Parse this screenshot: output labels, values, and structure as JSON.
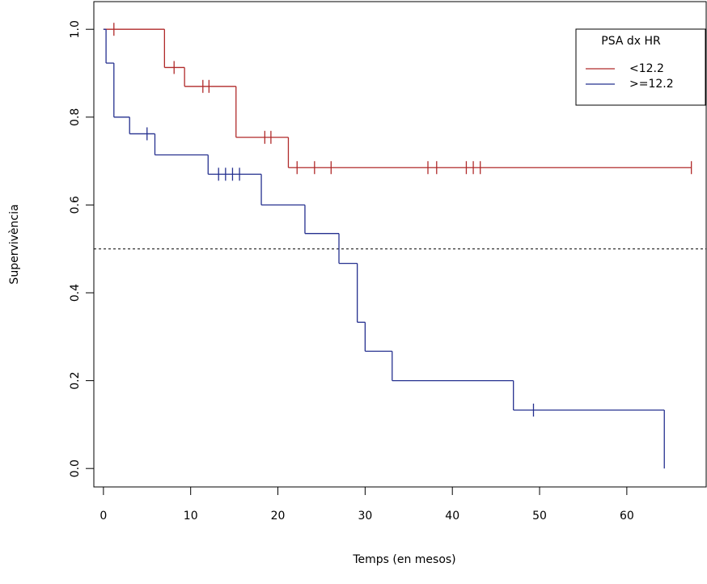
{
  "chart_data": {
    "type": "km",
    "xlabel": "Temps (en mesos)",
    "ylabel": "Supervivència",
    "xlim": [
      -1.1,
      69.1
    ],
    "ylim": [
      -0.042,
      1.063
    ],
    "xticks": [
      0,
      10,
      20,
      30,
      40,
      50,
      60
    ],
    "yticks": [
      {
        "value": 0,
        "label": "0.0"
      },
      {
        "value": 0.2,
        "label": "0.2"
      },
      {
        "value": 0.4,
        "label": "0.4"
      },
      {
        "value": 0.6,
        "label": "0.6"
      },
      {
        "value": 0.8,
        "label": "0.8"
      },
      {
        "value": 1,
        "label": "1.0"
      }
    ],
    "hline": 0.5,
    "legend_title": "PSA dx HR",
    "legend": "top-right",
    "series": [
      {
        "name": "<12.2",
        "color": "#b02a2a",
        "x": [
          0,
          7.0,
          9.3,
          15.2,
          21.2
        ],
        "values": [
          1,
          0.913,
          0.87,
          0.754,
          0.685
        ],
        "censored": {
          "x": [
            1.2,
            8.1,
            11.4,
            12.1,
            18.5,
            19.2,
            22.2,
            24.2,
            26.1,
            37.2,
            38.2,
            41.6,
            42.4,
            43.2,
            67.4
          ],
          "values": [
            1,
            0.913,
            0.87,
            0.87,
            0.754,
            0.754,
            0.685,
            0.685,
            0.685,
            0.685,
            0.685,
            0.685,
            0.685,
            0.685,
            0.685
          ]
        }
      },
      {
        "name": ">=12.2",
        "color": "#25308f",
        "x": [
          0,
          0.3,
          1.2,
          3.0,
          5.9,
          12.0,
          18.1,
          23.1,
          27.0,
          29.1,
          30.0,
          33.1,
          47.0,
          64.3
        ],
        "values": [
          1,
          0.923,
          0.8,
          0.762,
          0.714,
          0.67,
          0.6,
          0.535,
          0.467,
          0.333,
          0.267,
          0.2,
          0.133,
          0
        ],
        "censored": {
          "x": [
            5.0,
            13.2,
            14.0,
            14.8,
            15.6,
            49.3
          ],
          "values": [
            0.762,
            0.67,
            0.67,
            0.67,
            0.67,
            0.133
          ]
        }
      }
    ]
  }
}
